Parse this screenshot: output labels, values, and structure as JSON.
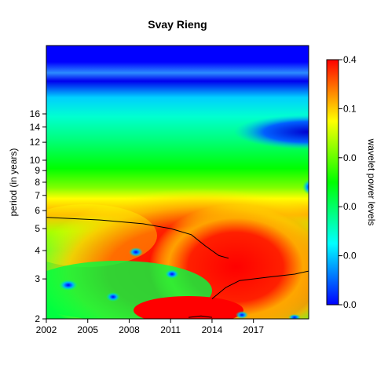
{
  "chart_data": {
    "type": "heatmap",
    "title": "Svay Rieng",
    "xlabel": "",
    "ylabel": "period (in years)",
    "x_ticks": [
      "2002",
      "2005",
      "2008",
      "2011",
      "2014",
      "2017"
    ],
    "x_tick_values": [
      2002,
      2005,
      2008,
      2011,
      2014,
      2017
    ],
    "xlim": [
      2002,
      2021
    ],
    "y_scale": "log",
    "y_ticks": [
      "2",
      "3",
      "4",
      "5",
      "6",
      "7",
      "8",
      "9",
      "10",
      "12",
      "14",
      "16"
    ],
    "y_tick_values": [
      2,
      3,
      4,
      5,
      6,
      7,
      8,
      9,
      10,
      12,
      14,
      16
    ],
    "ylim": [
      2,
      32
    ],
    "colorbar": {
      "label": "wavelet power levels",
      "tick_labels": [
        "0.4",
        "0.1",
        "0.0",
        "0.0",
        "0.0",
        "0.0"
      ],
      "colors": [
        "#0000ff",
        "#00ffff",
        "#00ff00",
        "#ffff00",
        "#ff0000"
      ]
    },
    "ridges": [
      {
        "name": "",
        "points": [
          [
            2002,
            5.6
          ],
          [
            2006,
            5.45
          ],
          [
            2009,
            5.25
          ],
          [
            2011,
            5.0
          ],
          [
            2012.5,
            4.7
          ],
          [
            2013.5,
            4.2
          ],
          [
            2014.5,
            3.8
          ],
          [
            2015.2,
            3.7
          ]
        ]
      },
      {
        "name": "",
        "points": [
          [
            2014,
            2.45
          ],
          [
            2015,
            2.75
          ],
          [
            2016,
            2.95
          ],
          [
            2018,
            3.05
          ],
          [
            2020,
            3.15
          ],
          [
            2021,
            3.25
          ]
        ]
      },
      {
        "name": "",
        "points": [
          [
            2012.3,
            2.03
          ],
          [
            2013.2,
            2.06
          ],
          [
            2014,
            2.03
          ]
        ]
      }
    ]
  }
}
